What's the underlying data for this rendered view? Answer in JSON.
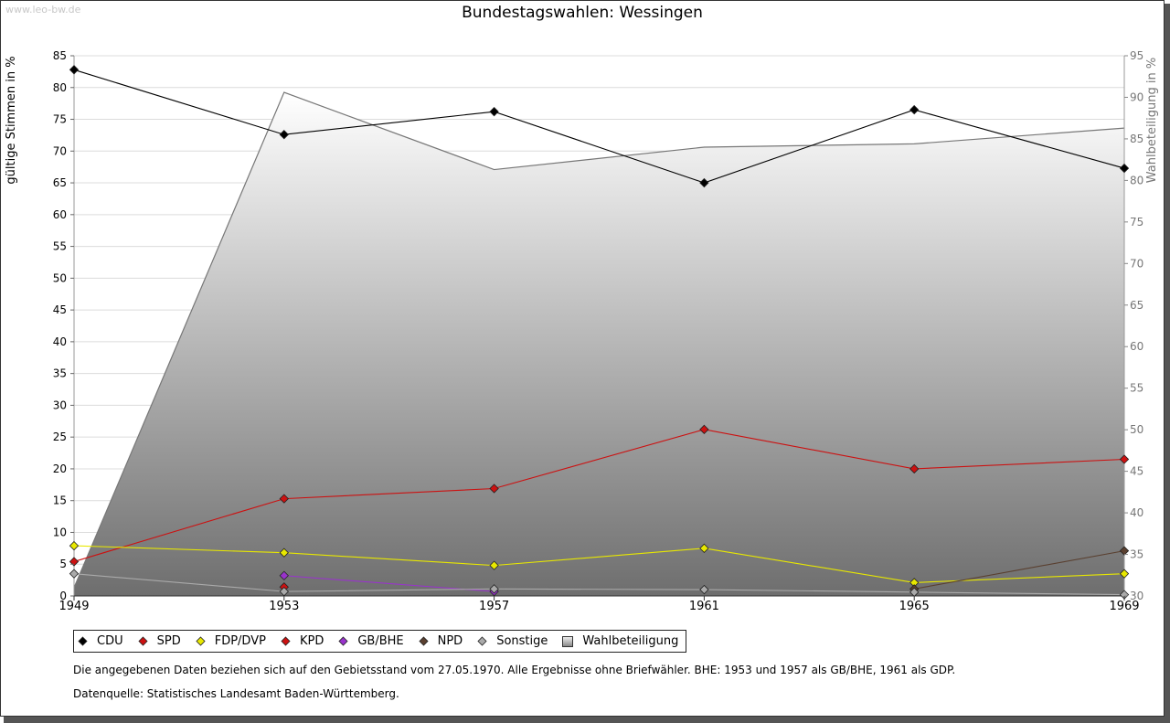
{
  "header": {
    "watermark": "www.leo-bw.de",
    "title": "Bundestagswahlen: Wessingen"
  },
  "chart_data": {
    "type": "line",
    "title": "Bundestagswahlen: Wessingen",
    "x": [
      "1949",
      "1953",
      "1957",
      "1961",
      "1965",
      "1969"
    ],
    "ylabel": "gültige Stimmen in %",
    "ylim": [
      0,
      85
    ],
    "yticks": [
      "0",
      "5",
      "10",
      "15",
      "20",
      "25",
      "30",
      "35",
      "40",
      "45",
      "50",
      "55",
      "60",
      "65",
      "70",
      "75",
      "80",
      "85"
    ],
    "y2label": "Wahlbeteiligung in %",
    "y2lim": [
      30,
      95
    ],
    "y2ticks": [
      "30",
      "35",
      "40",
      "45",
      "50",
      "55",
      "60",
      "65",
      "70",
      "75",
      "80",
      "85",
      "90",
      "95"
    ],
    "grid": true,
    "legend_position": "bottom",
    "series": [
      {
        "name": "CDU",
        "color": "#000000",
        "axis": "left",
        "values": [
          82.8,
          72.6,
          76.2,
          65.0,
          76.5,
          67.3
        ]
      },
      {
        "name": "SPD",
        "color": "#cc1111",
        "axis": "left",
        "values": [
          5.4,
          15.3,
          16.9,
          26.2,
          20.0,
          21.5
        ]
      },
      {
        "name": "FDP/DVP",
        "color": "#e8e800",
        "axis": "left",
        "values": [
          7.9,
          6.8,
          4.8,
          7.5,
          2.1,
          3.5
        ]
      },
      {
        "name": "KPD",
        "color": "#cc1111",
        "axis": "left",
        "values": [
          null,
          1.4,
          null,
          null,
          null,
          null
        ]
      },
      {
        "name": "GB/BHE",
        "color": "#9933cc",
        "axis": "left",
        "values": [
          null,
          3.2,
          0.7,
          null,
          null,
          null
        ]
      },
      {
        "name": "NPD",
        "color": "#5a4030",
        "axis": "left",
        "values": [
          null,
          null,
          null,
          null,
          1.1,
          7.1
        ]
      },
      {
        "name": "Sonstige",
        "color": "#aaaaaa",
        "axis": "left",
        "values": [
          3.5,
          0.7,
          1.1,
          1.0,
          0.6,
          0.2
        ]
      },
      {
        "name": "Wahlbeteiligung",
        "color": "#777777",
        "axis": "right",
        "type": "area",
        "values": [
          31.0,
          90.6,
          81.3,
          84.0,
          84.4,
          86.3
        ]
      }
    ]
  },
  "notes": {
    "line1": "Die angegebenen Daten beziehen sich auf den Gebietsstand vom 27.05.1970. Alle Ergebnisse ohne Briefwähler. BHE: 1953 und 1957 als GB/BHE, 1961 als GDP.",
    "line2": "Datenquelle: Statistisches Landesamt Baden-Württemberg."
  }
}
